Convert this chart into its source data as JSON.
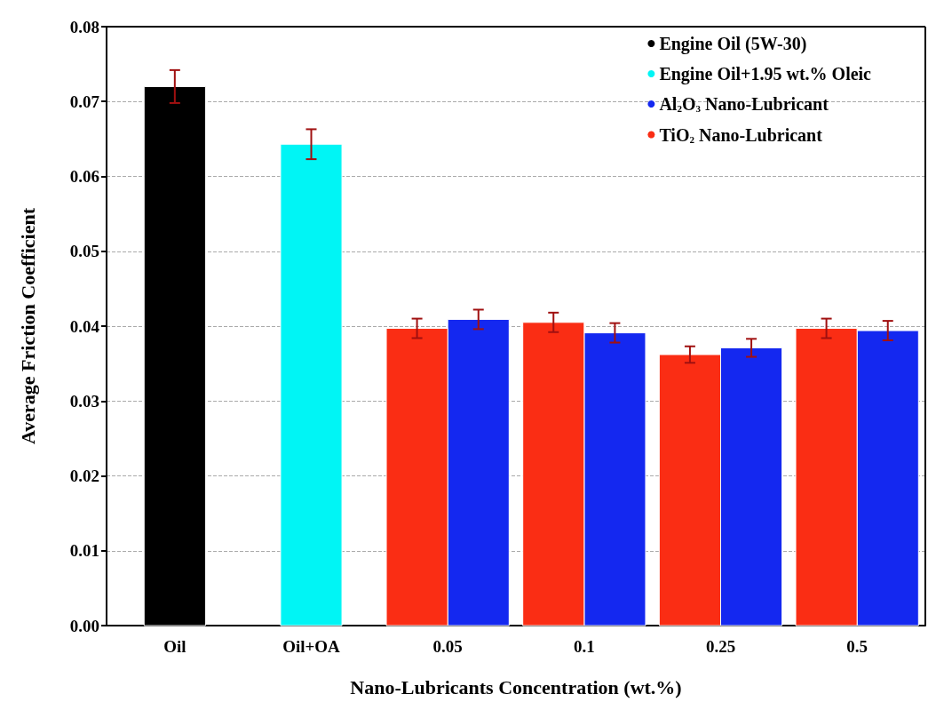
{
  "chart_data": {
    "type": "bar",
    "categories": [
      "Oil",
      "Oil+OA",
      "0.05",
      "0.1",
      "0.25",
      "0.5"
    ],
    "series": [
      {
        "name": "Engine Oil (5W-30)",
        "color": "#000000",
        "values": [
          0.072,
          null,
          null,
          null,
          null,
          null
        ],
        "errors": [
          0.0022,
          null,
          null,
          null,
          null,
          null
        ]
      },
      {
        "name": "Engine Oil+1.95 wt.% Oleic",
        "color": "#00f5f5",
        "values": [
          null,
          0.0643,
          null,
          null,
          null,
          null
        ],
        "errors": [
          null,
          0.002,
          null,
          null,
          null,
          null
        ]
      },
      {
        "name": "Al$_{2}$O$_{3}$ Nano-Lubricant",
        "color": "#1428f0",
        "values": [
          null,
          null,
          0.0409,
          0.0391,
          0.0371,
          0.0394
        ],
        "errors": [
          null,
          null,
          0.0013,
          0.0013,
          0.0012,
          0.0013
        ]
      },
      {
        "name": "TiO$_{2}$ Nano-Lubricant",
        "color": "#fa2d14",
        "values": [
          null,
          null,
          0.0397,
          0.0405,
          0.0362,
          0.0397
        ],
        "errors": [
          null,
          null,
          0.0013,
          0.0013,
          0.0011,
          0.0013
        ]
      }
    ],
    "xlabel": "Nano-Lubricants Concentration (wt.%)",
    "ylabel": "Average Friction Coefficient",
    "ylim": [
      0,
      0.08
    ],
    "yticks": [
      {
        "value": 0,
        "label": "0.00"
      },
      0.01,
      0.02,
      0.03,
      0.04,
      0.05,
      0.06,
      0.07,
      0.08
    ],
    "grid": "y",
    "legend": "top right"
  }
}
